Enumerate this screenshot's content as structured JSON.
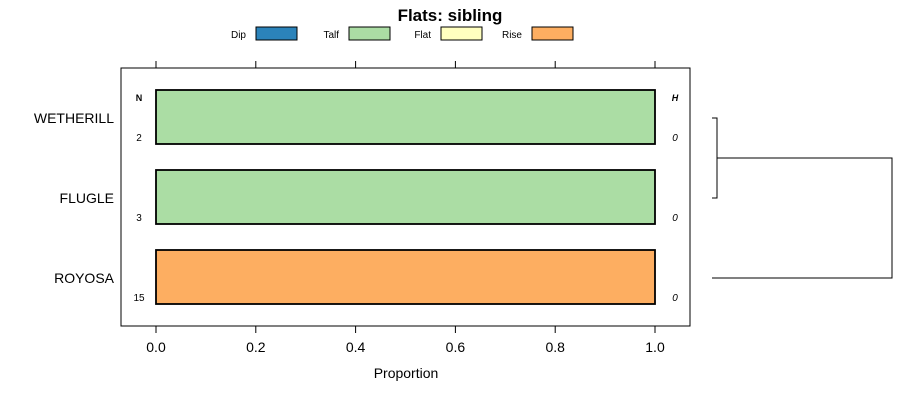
{
  "chart_data": {
    "type": "bar",
    "orientation": "horizontal",
    "stacked": true,
    "title": "Flats: sibling",
    "xlabel": "Proportion",
    "ylabel": "",
    "xlim": [
      0,
      1
    ],
    "xticks": [
      0.0,
      0.2,
      0.4,
      0.6,
      0.8,
      1.0
    ],
    "xtick_labels": [
      "0.0",
      "0.2",
      "0.4",
      "0.6",
      "0.8",
      "1.0"
    ],
    "legend": {
      "placement": "top",
      "entries": [
        {
          "label": "Dip",
          "color": "#2b83ba"
        },
        {
          "label": "Talf",
          "color": "#abdda4"
        },
        {
          "label": "Flat",
          "color": "#ffffbf"
        },
        {
          "label": "Rise",
          "color": "#fdae61"
        }
      ]
    },
    "categories": [
      "WETHERILL",
      "FLUGLE",
      "ROYOSA"
    ],
    "series": [
      {
        "name": "Dip",
        "values": [
          0,
          0,
          0
        ]
      },
      {
        "name": "Talf",
        "values": [
          1,
          1,
          0
        ]
      },
      {
        "name": "Flat",
        "values": [
          0,
          0,
          0
        ]
      },
      {
        "name": "Rise",
        "values": [
          0,
          0,
          1
        ]
      }
    ],
    "left_column": {
      "header": "N",
      "values": [
        "2",
        "3",
        "15"
      ]
    },
    "right_column": {
      "header": "H",
      "values": [
        "0",
        "0",
        "0"
      ]
    },
    "dendrogram": {
      "shown": true,
      "merges": [
        {
          "members": [
            "WETHERILL",
            "FLUGLE"
          ],
          "height": 0
        },
        {
          "members": [
            "WETHERILL",
            "FLUGLE",
            "ROYOSA"
          ],
          "height": 1
        }
      ]
    }
  }
}
